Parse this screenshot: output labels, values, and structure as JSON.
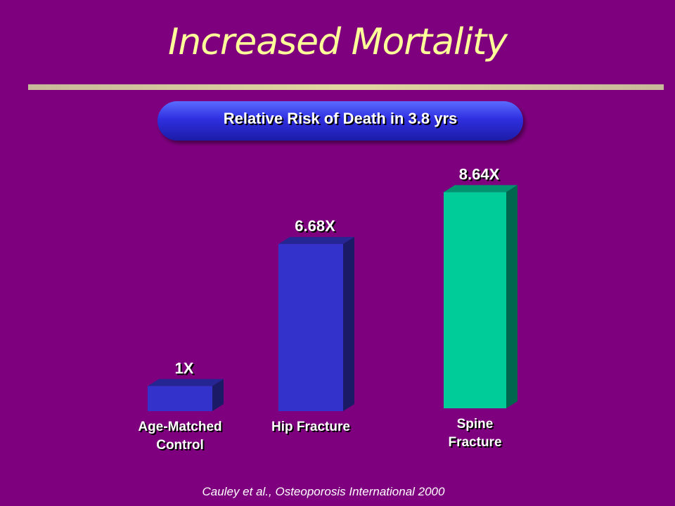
{
  "slide": {
    "title": "Increased Mortality",
    "subtitle": "Relative Risk of Death in 3.8 yrs",
    "citation": "Cauley et al., Osteoporosis International 2000"
  },
  "colors": {
    "background": "#7f007f",
    "title": "#ffff99",
    "bar_blue": "#3333cc",
    "bar_green": "#00cc99"
  },
  "chart_data": {
    "type": "bar",
    "title": "Relative Risk of Death in 3.8 yrs",
    "xlabel": "",
    "ylabel": "",
    "ylim": [
      0,
      9
    ],
    "grid": false,
    "categories": [
      [
        "Age-Matched",
        "Control"
      ],
      [
        "Hip Fracture"
      ],
      [
        "Spine",
        "Fracture"
      ]
    ],
    "values": [
      1,
      6.68,
      8.64
    ],
    "data_labels": [
      "1X",
      "6.68X",
      "8.64X"
    ],
    "bar_colors": [
      "#3333cc",
      "#3333cc",
      "#00cc99"
    ]
  }
}
